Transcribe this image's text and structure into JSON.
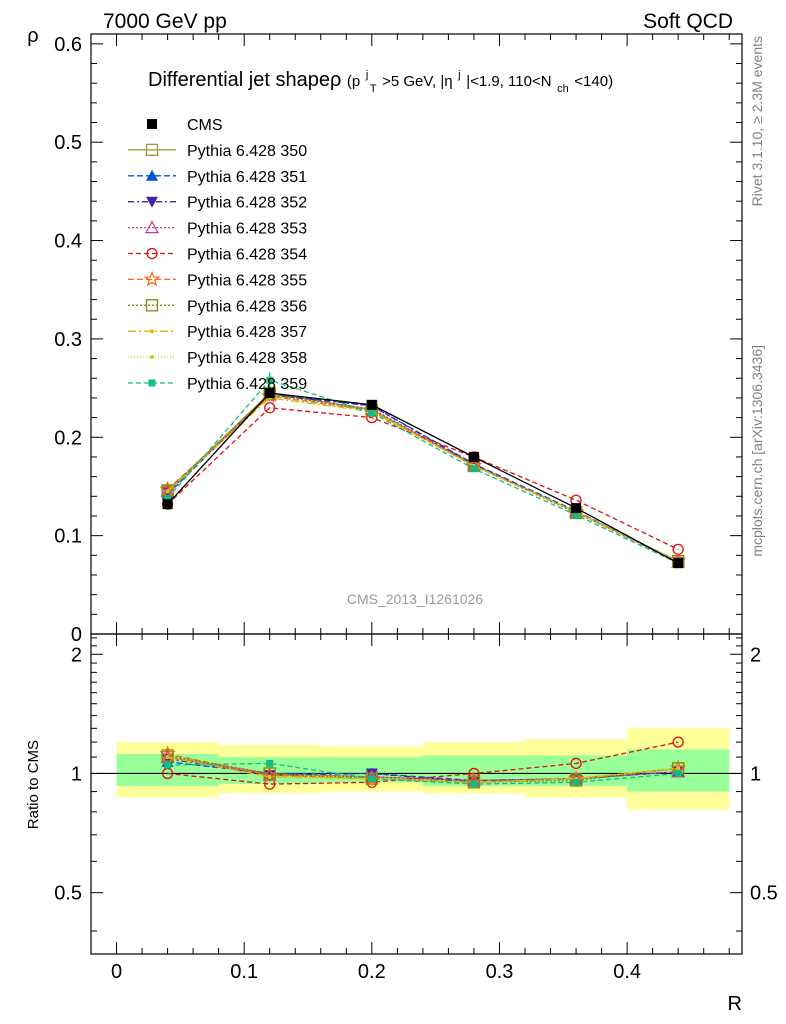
{
  "header": {
    "left": "7000 GeV pp",
    "right": "Soft QCD"
  },
  "side_labels": {
    "rivet": "Rivet 3.1.10, ≥ 2.3M events",
    "mcplots": "mcplots.cern.ch [arXiv:1306.3436]"
  },
  "colors": {
    "band_outer": "#ffff99",
    "band_inner": "#99ff99",
    "cms": "#000000",
    "s350": "#999933",
    "s351": "#0055cc",
    "s352": "#4422aa",
    "s353": "#cc3399",
    "s354": "#dd1111",
    "s355": "#ff6611",
    "s356": "#888811",
    "s357": "#ddbb00",
    "s358": "#cccc22",
    "s359": "#11bb88"
  },
  "chart_data": {
    "type": "line",
    "title": "Differential jet shapeρ",
    "title_suffix": {
      "open": "(p",
      "sup1": "j",
      "sub1": "T",
      "mid1": ">5 GeV, |η",
      "sup2": "j",
      "mid2": "|<1.9, 110<N",
      "sub2": "ch",
      "close": "<140)"
    },
    "watermark": "CMS_2013_I1261026",
    "xlabel": "R",
    "ylabel": "ρ",
    "ratio_ylabel": "Ratio to CMS",
    "xlim": [
      -0.02,
      0.49
    ],
    "ylim": [
      0,
      0.61
    ],
    "ratio_ylim": [
      0.35,
      2.25
    ],
    "x_ticks": [
      "0",
      "0.1",
      "0.2",
      "0.3",
      "0.4"
    ],
    "y_ticks": [
      "0",
      "0.1",
      "0.2",
      "0.3",
      "0.4",
      "0.5",
      "0.6"
    ],
    "ratio_y_ticks": [
      "0.5",
      "1",
      "2"
    ],
    "x": [
      0.04,
      0.12,
      0.2,
      0.28,
      0.36,
      0.44
    ],
    "bin_edges": [
      0.0,
      0.08,
      0.16,
      0.24,
      0.32,
      0.4,
      0.48
    ],
    "band_outer": [
      [
        0.87,
        1.2
      ],
      [
        0.89,
        1.18
      ],
      [
        0.9,
        1.17
      ],
      [
        0.89,
        1.2
      ],
      [
        0.87,
        1.22
      ],
      [
        0.81,
        1.3
      ]
    ],
    "band_inner": [
      [
        0.93,
        1.12
      ],
      [
        0.94,
        1.1
      ],
      [
        0.95,
        1.1
      ],
      [
        0.93,
        1.11
      ],
      [
        0.93,
        1.11
      ],
      [
        0.9,
        1.15
      ]
    ],
    "legend_placement": "top-left",
    "series": [
      {
        "name": "CMS",
        "values": [
          0.132,
          0.245,
          0.233,
          0.18,
          0.128,
          0.072
        ],
        "ratio": [
          1.0,
          1.0,
          1.0,
          1.0,
          1.0,
          1.0
        ],
        "color_key": "cms",
        "dash": "",
        "marker": "square-filled"
      },
      {
        "name": "Pythia 6.428 350",
        "values": [
          0.145,
          0.245,
          0.228,
          0.172,
          0.124,
          0.074
        ],
        "ratio": [
          1.1,
          1.0,
          0.98,
          0.96,
          0.97,
          1.03
        ],
        "color_key": "s350",
        "dash": "",
        "marker": "square-open"
      },
      {
        "name": "Pythia 6.428 351",
        "values": [
          0.142,
          0.244,
          0.232,
          0.173,
          0.125,
          0.073
        ],
        "ratio": [
          1.07,
          1.0,
          1.0,
          0.96,
          0.97,
          1.01
        ],
        "color_key": "s351",
        "dash": "6,3",
        "marker": "triangle-up-filled"
      },
      {
        "name": "Pythia 6.428 352",
        "values": [
          0.144,
          0.243,
          0.232,
          0.172,
          0.124,
          0.073
        ],
        "ratio": [
          1.09,
          0.99,
          1.0,
          0.95,
          0.97,
          1.01
        ],
        "color_key": "s352",
        "dash": "6,3,2,3",
        "marker": "triangle-down-filled"
      },
      {
        "name": "Pythia 6.428 353",
        "values": [
          0.145,
          0.243,
          0.229,
          0.172,
          0.124,
          0.073
        ],
        "ratio": [
          1.1,
          0.99,
          0.98,
          0.96,
          0.97,
          1.01
        ],
        "color_key": "s353",
        "dash": "2,2",
        "marker": "triangle-up-open"
      },
      {
        "name": "Pythia 6.428 354",
        "values": [
          0.132,
          0.23,
          0.22,
          0.18,
          0.136,
          0.086
        ],
        "ratio": [
          1.0,
          0.94,
          0.95,
          1.0,
          1.06,
          1.2
        ],
        "color_key": "s354",
        "dash": "5,3",
        "marker": "circle-open"
      },
      {
        "name": "Pythia 6.428 355",
        "values": [
          0.147,
          0.242,
          0.227,
          0.171,
          0.124,
          0.074
        ],
        "ratio": [
          1.12,
          0.99,
          0.97,
          0.95,
          0.97,
          1.03
        ],
        "color_key": "s355",
        "dash": "6,3",
        "marker": "star-open"
      },
      {
        "name": "Pythia 6.428 356",
        "values": [
          0.146,
          0.244,
          0.227,
          0.171,
          0.123,
          0.074
        ],
        "ratio": [
          1.11,
          1.0,
          0.97,
          0.95,
          0.96,
          1.03
        ],
        "color_key": "s356",
        "dash": "2,2",
        "marker": "square-open"
      },
      {
        "name": "Pythia 6.428 357",
        "values": [
          0.145,
          0.24,
          0.226,
          0.171,
          0.124,
          0.074
        ],
        "ratio": [
          1.1,
          0.98,
          0.97,
          0.95,
          0.97,
          1.03
        ],
        "color_key": "s357",
        "dash": "8,3,2,3",
        "marker": "dot-small"
      },
      {
        "name": "Pythia 6.428 358",
        "values": [
          0.145,
          0.241,
          0.227,
          0.171,
          0.124,
          0.074
        ],
        "ratio": [
          1.1,
          0.98,
          0.97,
          0.95,
          0.97,
          1.03
        ],
        "color_key": "s358",
        "dash": "1,2",
        "marker": "dot-small"
      },
      {
        "name": "Pythia 6.428 359",
        "values": [
          0.138,
          0.258,
          0.225,
          0.168,
          0.121,
          0.072
        ],
        "ratio": [
          1.05,
          1.06,
          0.97,
          0.94,
          0.95,
          1.0
        ],
        "color_key": "s359",
        "dash": "5,3",
        "marker": "square-filled-small"
      }
    ]
  }
}
